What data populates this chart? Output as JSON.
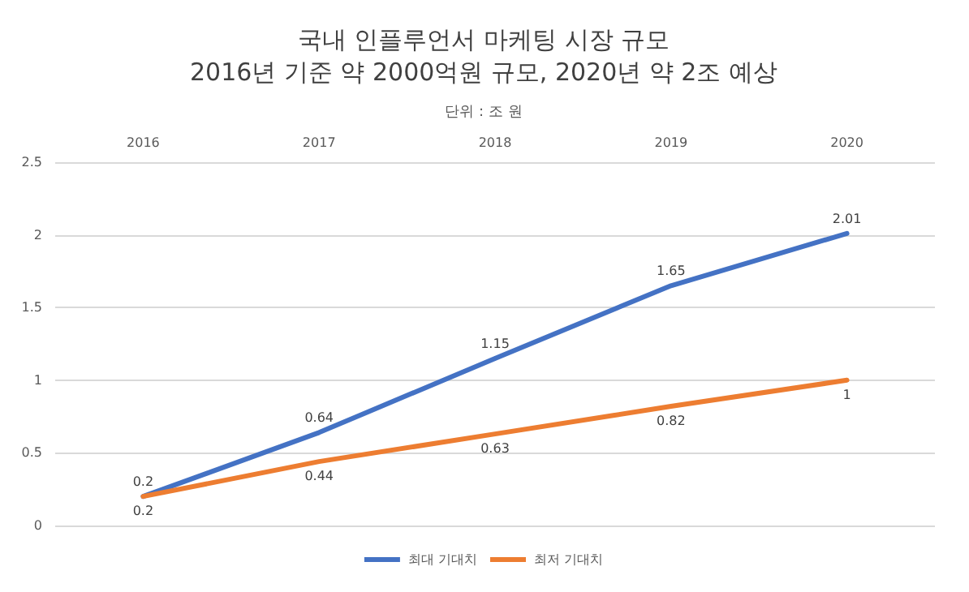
{
  "chart_data": {
    "type": "line",
    "title": "국내 인플루언서 마케팅 시장 규모",
    "subtitle": "2016년 기준 약 2000억원 규모, 2020년 약 2조 예상",
    "annotations": [
      "단위 : 조 원"
    ],
    "categories": [
      "2016",
      "2017",
      "2018",
      "2019",
      "2020"
    ],
    "series": [
      {
        "name": "최대 기대치",
        "color": "#4472c4",
        "values": [
          0.2,
          0.64,
          1.15,
          1.65,
          2.01
        ]
      },
      {
        "name": "최저 기대치",
        "color": "#ed7d31",
        "values": [
          0.2,
          0.44,
          0.63,
          0.82,
          1
        ]
      }
    ],
    "ylim": [
      0,
      2.5
    ],
    "yticks": [
      0,
      0.5,
      1,
      1.5,
      2,
      2.5
    ],
    "grid": "y",
    "legend": "bottom",
    "data_labels": true,
    "marker": "none",
    "line_style": "solid"
  }
}
